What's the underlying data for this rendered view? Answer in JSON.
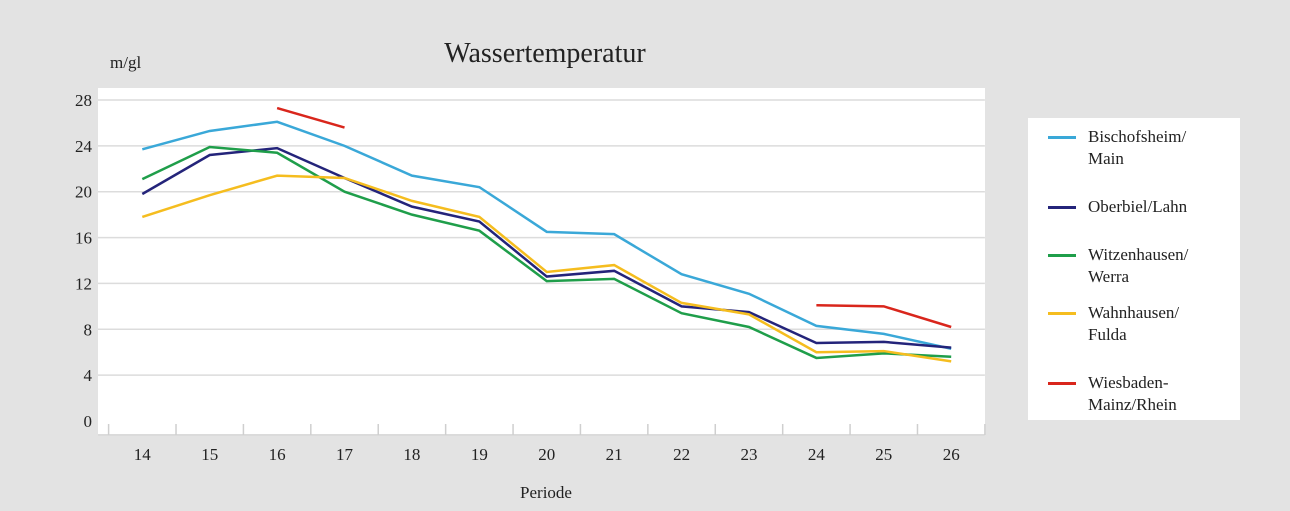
{
  "chart_data": {
    "type": "line",
    "title": "Wassertemperatur",
    "y_label": "m/gl",
    "x_label": "Periode",
    "categories": [
      "14",
      "15",
      "16",
      "17",
      "18",
      "19",
      "20",
      "21",
      "22",
      "23",
      "24",
      "25",
      "26"
    ],
    "ylim": [
      0,
      28
    ],
    "yticks": [
      0,
      4,
      8,
      12,
      16,
      20,
      24,
      28
    ],
    "grid": true,
    "legend": "right",
    "series": [
      {
        "name": "Bischofsheim/\nMain",
        "color": "#3aa8d8",
        "values": [
          23.7,
          25.3,
          26.1,
          24.0,
          21.4,
          20.4,
          16.5,
          16.3,
          12.8,
          11.1,
          8.3,
          7.6,
          6.3
        ]
      },
      {
        "name": "Oberbiel/Lahn",
        "color": "#24247a",
        "values": [
          19.8,
          23.2,
          23.8,
          21.2,
          18.7,
          17.4,
          12.6,
          13.1,
          10.0,
          9.5,
          6.8,
          6.9,
          6.4
        ]
      },
      {
        "name": "Witzenhausen/\nWerra",
        "color": "#1f9e4a",
        "values": [
          21.1,
          23.9,
          23.4,
          20.0,
          18.0,
          16.6,
          12.2,
          12.4,
          9.4,
          8.2,
          5.5,
          5.9,
          5.6
        ]
      },
      {
        "name": "Wahnhausen/\nFulda",
        "color": "#f5bd1f",
        "values": [
          17.8,
          19.7,
          21.4,
          21.2,
          19.2,
          17.8,
          13.0,
          13.6,
          10.3,
          9.3,
          6.0,
          6.1,
          5.2
        ]
      },
      {
        "name": "Wiesbaden-\nMainz/Rhein",
        "color": "#d9261c",
        "values": [
          null,
          null,
          27.3,
          25.6,
          null,
          null,
          null,
          null,
          null,
          null,
          10.1,
          10.0,
          8.2
        ]
      }
    ]
  }
}
